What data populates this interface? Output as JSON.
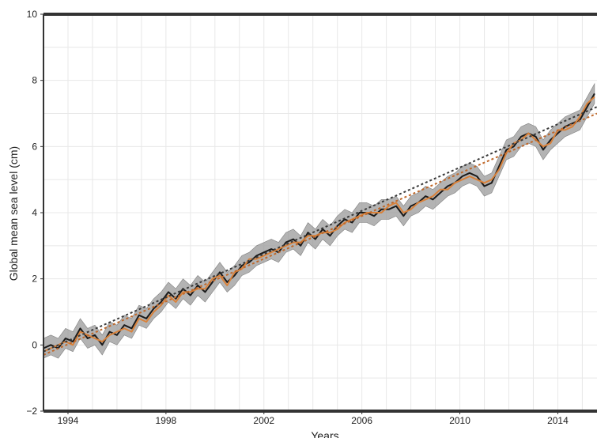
{
  "chart_data": {
    "type": "line",
    "title": "",
    "xlabel": "Years",
    "ylabel": "Global mean sea level (cm)",
    "xlim": [
      1993.0,
      2015.6
    ],
    "ylim": [
      -2,
      10
    ],
    "xticks": [
      1994,
      1998,
      2002,
      2006,
      2010,
      2014
    ],
    "xtick_labels": [
      "1994",
      "1998",
      "2002",
      "2006",
      "2010",
      "2014"
    ],
    "yticks": [
      -2,
      0,
      2,
      4,
      6,
      8,
      10
    ],
    "ytick_labels": [
      "−2",
      "0",
      "2",
      "4",
      "6",
      "8",
      "10"
    ],
    "grid": true,
    "legend": "none",
    "colors": {
      "band": "#9a9a9a",
      "black_series": "#1a1a1a",
      "orange_series": "#d9823b",
      "trend_black": "#3a3a3a",
      "trend_orange": "#c0682a",
      "grid": "#e8e8e8",
      "axis": "#333333"
    },
    "series": [
      {
        "style": "solid",
        "color": "#1a1a1a",
        "uncertainty_halfwidth": 0.3,
        "x": [
          1993.0,
          1993.3,
          1993.6,
          1993.9,
          1994.2,
          1994.5,
          1994.8,
          1995.1,
          1995.4,
          1995.7,
          1996.0,
          1996.3,
          1996.6,
          1996.9,
          1997.2,
          1997.5,
          1997.8,
          1998.1,
          1998.4,
          1998.7,
          1999.0,
          1999.3,
          1999.6,
          1999.9,
          2000.2,
          2000.5,
          2000.8,
          2001.1,
          2001.4,
          2001.7,
          2002.0,
          2002.3,
          2002.6,
          2002.9,
          2003.2,
          2003.5,
          2003.8,
          2004.1,
          2004.4,
          2004.7,
          2005.0,
          2005.3,
          2005.6,
          2005.9,
          2006.2,
          2006.5,
          2006.8,
          2007.1,
          2007.4,
          2007.7,
          2008.0,
          2008.3,
          2008.6,
          2008.9,
          2009.2,
          2009.5,
          2009.8,
          2010.1,
          2010.4,
          2010.7,
          2011.0,
          2011.3,
          2011.6,
          2011.9,
          2012.2,
          2012.5,
          2012.8,
          2013.1,
          2013.4,
          2013.7,
          2014.0,
          2014.3,
          2014.6,
          2014.9,
          2015.2,
          2015.5
        ],
        "y": [
          -0.1,
          0.0,
          -0.1,
          0.2,
          0.1,
          0.5,
          0.2,
          0.3,
          0.0,
          0.4,
          0.3,
          0.6,
          0.5,
          0.9,
          0.8,
          1.1,
          1.3,
          1.6,
          1.4,
          1.7,
          1.5,
          1.8,
          1.6,
          1.9,
          2.2,
          1.9,
          2.1,
          2.4,
          2.5,
          2.7,
          2.8,
          2.9,
          2.8,
          3.1,
          3.2,
          3.0,
          3.4,
          3.2,
          3.5,
          3.3,
          3.6,
          3.8,
          3.7,
          4.0,
          4.0,
          3.9,
          4.1,
          4.1,
          4.2,
          3.9,
          4.2,
          4.3,
          4.5,
          4.4,
          4.6,
          4.8,
          4.9,
          5.1,
          5.2,
          5.1,
          4.8,
          4.9,
          5.4,
          5.9,
          6.0,
          6.3,
          6.4,
          6.3,
          5.9,
          6.2,
          6.4,
          6.6,
          6.7,
          6.8,
          7.2,
          7.6
        ]
      },
      {
        "style": "solid",
        "color": "#d9823b",
        "x": [
          1993.0,
          1993.3,
          1993.6,
          1993.9,
          1994.2,
          1994.5,
          1994.8,
          1995.1,
          1995.4,
          1995.7,
          1996.0,
          1996.3,
          1996.6,
          1996.9,
          1997.2,
          1997.5,
          1997.8,
          1998.1,
          1998.4,
          1998.7,
          1999.0,
          1999.3,
          1999.6,
          1999.9,
          2000.2,
          2000.5,
          2000.8,
          2001.1,
          2001.4,
          2001.7,
          2002.0,
          2002.3,
          2002.6,
          2002.9,
          2003.2,
          2003.5,
          2003.8,
          2004.1,
          2004.4,
          2004.7,
          2005.0,
          2005.3,
          2005.6,
          2005.9,
          2006.2,
          2006.5,
          2006.8,
          2007.1,
          2007.4,
          2007.7,
          2008.0,
          2008.3,
          2008.6,
          2008.9,
          2009.2,
          2009.5,
          2009.8,
          2010.1,
          2010.4,
          2010.7,
          2011.0,
          2011.3,
          2011.6,
          2011.9,
          2012.2,
          2012.5,
          2012.8,
          2013.1,
          2013.4,
          2013.7,
          2014.0,
          2014.3,
          2014.6,
          2014.9,
          2015.2,
          2015.5
        ],
        "y": [
          -0.2,
          -0.1,
          0.0,
          0.1,
          0.0,
          0.4,
          0.3,
          0.2,
          0.1,
          0.3,
          0.4,
          0.5,
          0.4,
          0.8,
          0.7,
          1.0,
          1.2,
          1.5,
          1.3,
          1.6,
          1.6,
          1.7,
          1.7,
          2.0,
          2.1,
          1.8,
          2.2,
          2.3,
          2.6,
          2.6,
          2.7,
          2.8,
          2.9,
          3.0,
          3.1,
          3.1,
          3.3,
          3.3,
          3.4,
          3.4,
          3.5,
          3.7,
          3.8,
          3.9,
          4.0,
          4.0,
          4.0,
          4.2,
          4.3,
          4.0,
          4.1,
          4.3,
          4.4,
          4.5,
          4.7,
          4.7,
          4.9,
          5.0,
          5.1,
          5.0,
          4.9,
          5.0,
          5.3,
          5.8,
          6.1,
          6.2,
          6.4,
          6.2,
          6.0,
          6.1,
          6.5,
          6.5,
          6.6,
          6.9,
          7.3,
          7.5
        ]
      },
      {
        "style": "dotted",
        "color": "#3a3a3a",
        "x": [
          1993.0,
          2015.6
        ],
        "y": [
          -0.2,
          7.2
        ]
      },
      {
        "style": "dotted",
        "color": "#c0682a",
        "x": [
          1993.0,
          2015.6
        ],
        "y": [
          -0.3,
          7.0
        ]
      }
    ]
  }
}
